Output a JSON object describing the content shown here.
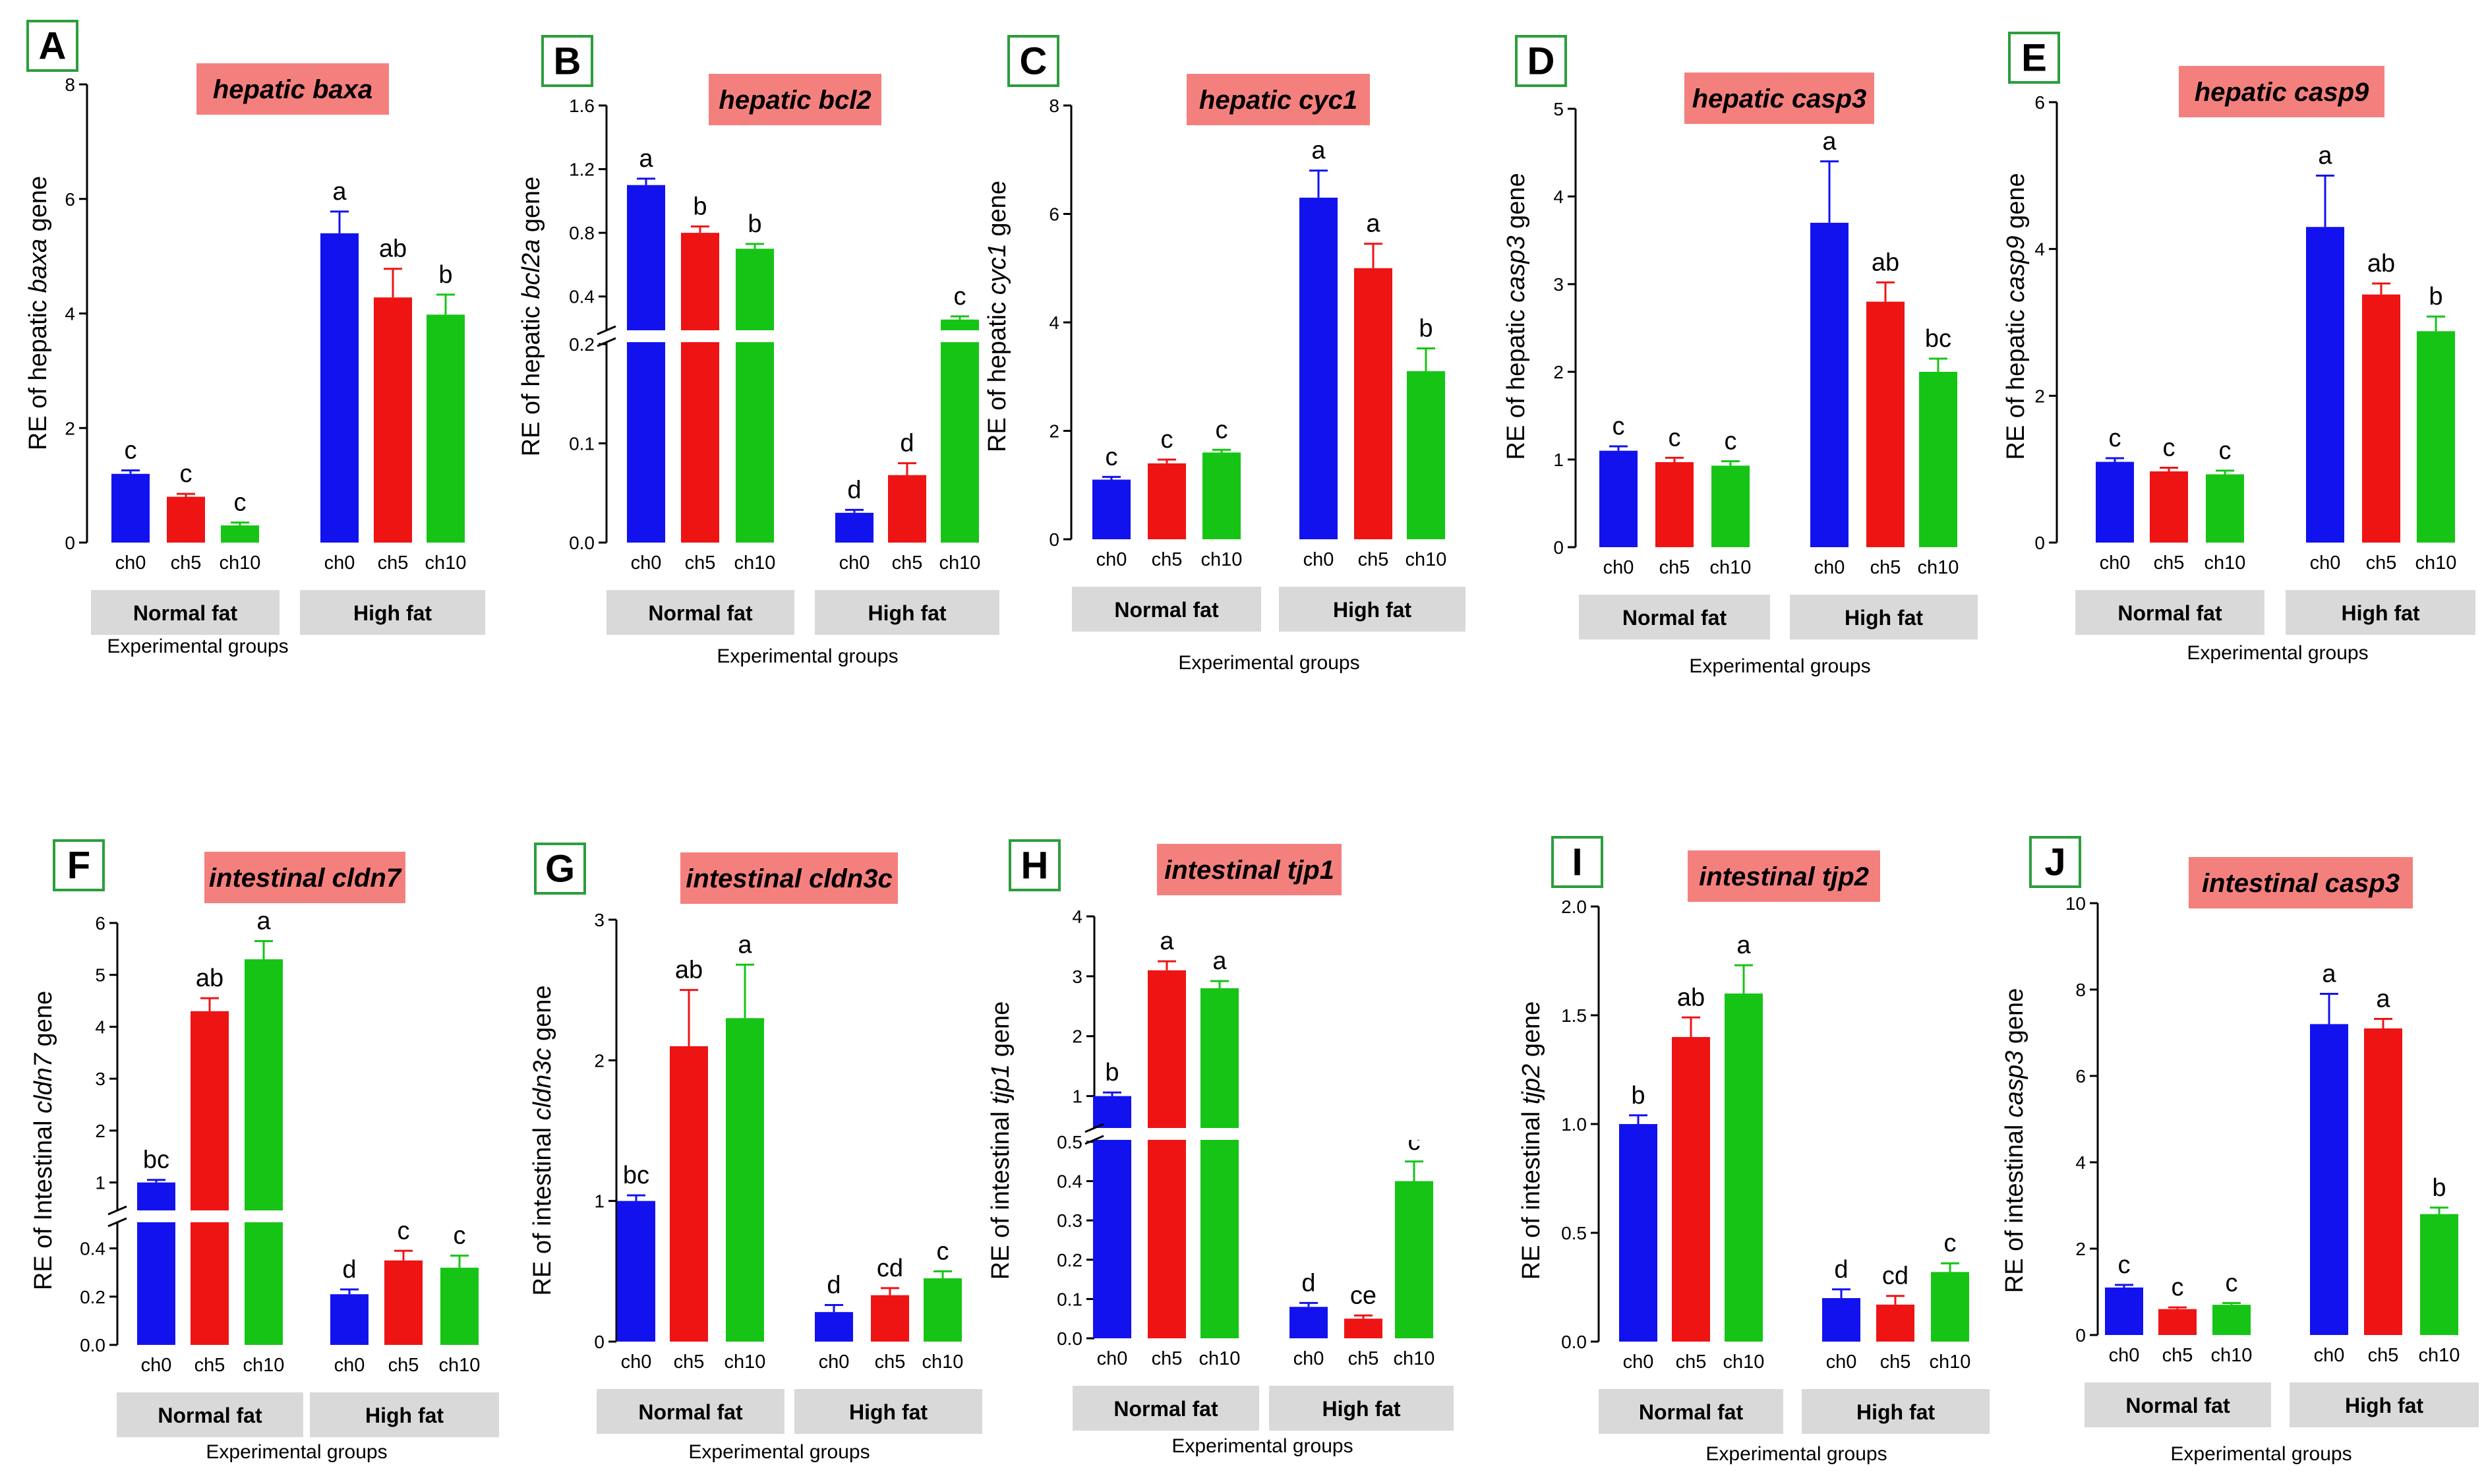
{
  "colors": {
    "ch0": "#1212ee",
    "ch5": "#ee1414",
    "ch10": "#16c416",
    "panel_border": "#2c9e3c",
    "title_bg": "#f4807e",
    "group_bg": "#d9d9d9",
    "axis": "#000000"
  },
  "chart_data": [
    {
      "letter": "A",
      "type": "bar",
      "title": "hepatic baxa",
      "ylabel_pre": "RE of hepatic ",
      "ylabel_it": "baxa",
      "ylabel_post": " gene",
      "xlabel": "Experimental groups",
      "yticks": [
        "0",
        "2",
        "4",
        "6",
        "8"
      ],
      "groups": [
        {
          "name": "Normal fat",
          "categories": [
            "ch0",
            "ch5",
            "ch10"
          ],
          "values": [
            1.2,
            0.8,
            0.3
          ],
          "errors": [
            0.06,
            0.05,
            0.05
          ],
          "letters": [
            "c",
            "c",
            "c"
          ]
        },
        {
          "name": "High fat",
          "categories": [
            "ch0",
            "ch5",
            "ch10"
          ],
          "values": [
            5.4,
            4.28,
            3.98
          ],
          "errors": [
            0.38,
            0.5,
            0.35
          ],
          "letters": [
            "a",
            "ab",
            "b"
          ]
        }
      ]
    },
    {
      "letter": "B",
      "type": "bar",
      "title": "hepatic bcl2",
      "ylabel_pre": "RE of hepatic ",
      "ylabel_it": "bcl2a",
      "ylabel_post": " gene",
      "xlabel": "Experimental groups",
      "yticks_lower": [
        "0.0",
        "0.1",
        "0.2"
      ],
      "yticks_upper": [
        "0.4",
        "0.8",
        "1.2",
        "1.6"
      ],
      "axis_break": true,
      "groups": [
        {
          "name": "Normal fat",
          "categories": [
            "ch0",
            "ch5",
            "ch10"
          ],
          "values": [
            1.1,
            0.8,
            0.7
          ],
          "errors": [
            0.04,
            0.04,
            0.03
          ],
          "letters": [
            "a",
            "b",
            "b"
          ]
        },
        {
          "name": "High fat",
          "categories": [
            "ch0",
            "ch5",
            "ch10"
          ],
          "values": [
            0.03,
            0.068,
            0.255
          ],
          "errors": [
            0.003,
            0.012,
            0.02
          ],
          "letters": [
            "d",
            "d",
            "c"
          ]
        }
      ]
    },
    {
      "letter": "C",
      "type": "bar",
      "title": "hepatic cyc1",
      "ylabel_pre": "RE of hepatic ",
      "ylabel_it": "cyc1",
      "ylabel_post": " gene",
      "xlabel": "Experimental groups",
      "yticks": [
        "0",
        "2",
        "4",
        "6",
        "8"
      ],
      "groups": [
        {
          "name": "Normal fat",
          "categories": [
            "ch0",
            "ch5",
            "ch10"
          ],
          "values": [
            1.1,
            1.4,
            1.6
          ],
          "errors": [
            0.05,
            0.07,
            0.05
          ],
          "letters": [
            "c",
            "c",
            "c"
          ]
        },
        {
          "name": "High fat",
          "categories": [
            "ch0",
            "ch5",
            "ch10"
          ],
          "values": [
            6.3,
            5.0,
            3.1
          ],
          "errors": [
            0.5,
            0.45,
            0.42
          ],
          "letters": [
            "a",
            "a",
            "b"
          ]
        }
      ]
    },
    {
      "letter": "D",
      "type": "bar",
      "title": "hepatic casp3",
      "ylabel_pre": "RE of hepatic ",
      "ylabel_it": "casp3",
      "ylabel_post": " gene",
      "xlabel": "Experimental groups",
      "yticks": [
        "0",
        "1",
        "2",
        "3",
        "4",
        "5"
      ],
      "groups": [
        {
          "name": "Normal fat",
          "categories": [
            "ch0",
            "ch5",
            "ch10"
          ],
          "values": [
            1.1,
            0.97,
            0.93
          ],
          "errors": [
            0.05,
            0.05,
            0.05
          ],
          "letters": [
            "c",
            "c",
            "c"
          ]
        },
        {
          "name": "High fat",
          "categories": [
            "ch0",
            "ch5",
            "ch10"
          ],
          "values": [
            3.7,
            2.8,
            2.0
          ],
          "errors": [
            0.7,
            0.22,
            0.15
          ],
          "letters": [
            "a",
            "ab",
            "bc"
          ]
        }
      ]
    },
    {
      "letter": "E",
      "type": "bar",
      "title": "hepatic casp9",
      "ylabel_pre": "RE of hepatic ",
      "ylabel_it": "casp9",
      "ylabel_post": " gene",
      "xlabel": "Experimental groups",
      "yticks": [
        "0",
        "2",
        "4",
        "6"
      ],
      "groups": [
        {
          "name": "Normal fat",
          "categories": [
            "ch0",
            "ch5",
            "ch10"
          ],
          "values": [
            1.1,
            0.97,
            0.93
          ],
          "errors": [
            0.05,
            0.05,
            0.05
          ],
          "letters": [
            "c",
            "c",
            "c"
          ]
        },
        {
          "name": "High fat",
          "categories": [
            "ch0",
            "ch5",
            "ch10"
          ],
          "values": [
            4.3,
            3.38,
            2.88
          ],
          "errors": [
            0.7,
            0.15,
            0.2
          ],
          "letters": [
            "a",
            "ab",
            "b"
          ]
        }
      ]
    },
    {
      "letter": "F",
      "type": "bar",
      "title": "intestinal cldn7",
      "ylabel_pre": "RE of Intestinal ",
      "ylabel_it": "cldn7",
      "ylabel_post": " gene",
      "xlabel": "Experimental groups",
      "yticks_lower": [
        "0.0",
        "0.2",
        "0.4"
      ],
      "yticks_upper": [
        "1",
        "2",
        "3",
        "4",
        "5",
        "6"
      ],
      "axis_break": true,
      "groups": [
        {
          "name": "Normal fat",
          "categories": [
            "ch0",
            "ch5",
            "ch10"
          ],
          "values": [
            1.0,
            4.3,
            5.3
          ],
          "errors": [
            0.05,
            0.25,
            0.35
          ],
          "letters": [
            "bc",
            "ab",
            "a"
          ]
        },
        {
          "name": "High fat",
          "categories": [
            "ch0",
            "ch5",
            "ch10"
          ],
          "values": [
            0.21,
            0.35,
            0.32
          ],
          "errors": [
            0.02,
            0.04,
            0.05
          ],
          "letters": [
            "d",
            "c",
            "c"
          ]
        }
      ]
    },
    {
      "letter": "G",
      "type": "bar",
      "title": "intestinal cldn3c",
      "ylabel_pre": "RE of intestinal ",
      "ylabel_it": "cldn3c",
      "ylabel_post": " gene",
      "xlabel": "Experimental groups",
      "yticks": [
        "0",
        "1",
        "2",
        "3"
      ],
      "groups": [
        {
          "name": "Normal fat",
          "categories": [
            "ch0",
            "ch5",
            "ch10"
          ],
          "values": [
            1.0,
            2.1,
            2.3
          ],
          "errors": [
            0.04,
            0.4,
            0.38
          ],
          "letters": [
            "bc",
            "ab",
            "a"
          ]
        },
        {
          "name": "High fat",
          "categories": [
            "ch0",
            "ch5",
            "ch10"
          ],
          "values": [
            0.21,
            0.33,
            0.45
          ],
          "errors": [
            0.05,
            0.05,
            0.05
          ],
          "letters": [
            "d",
            "cd",
            "c"
          ]
        }
      ]
    },
    {
      "letter": "H",
      "type": "bar",
      "title": "intestinal tjp1",
      "ylabel_pre": "RE of intestinal ",
      "ylabel_it": "tjp1",
      "ylabel_post": " gene",
      "xlabel": "Experimental groups",
      "yticks_lower": [
        "0.0",
        "0.1",
        "0.2",
        "0.3",
        "0.4",
        "0.5"
      ],
      "yticks_upper": [
        "1",
        "2",
        "3",
        "4"
      ],
      "axis_break": true,
      "groups": [
        {
          "name": "Normal fat",
          "categories": [
            "ch0",
            "ch5",
            "ch10"
          ],
          "values": [
            1.0,
            3.1,
            2.8
          ],
          "errors": [
            0.06,
            0.15,
            0.12
          ],
          "letters": [
            "b",
            "a",
            "a"
          ]
        },
        {
          "name": "High fat",
          "categories": [
            "ch0",
            "ch5",
            "ch10"
          ],
          "values": [
            0.08,
            0.05,
            0.4
          ],
          "errors": [
            0.01,
            0.008,
            0.05
          ],
          "letters": [
            "d",
            "ce",
            "c"
          ]
        }
      ]
    },
    {
      "letter": "I",
      "type": "bar",
      "title": "intestinal tjp2",
      "ylabel_pre": "RE of intestinal ",
      "ylabel_it": "tjp2",
      "ylabel_post": " gene",
      "xlabel": "Experimental groups",
      "yticks": [
        "0.0",
        "0.5",
        "1.0",
        "1.5",
        "2.0"
      ],
      "groups": [
        {
          "name": "Normal fat",
          "categories": [
            "ch0",
            "ch5",
            "ch10"
          ],
          "values": [
            1.0,
            1.4,
            1.6
          ],
          "errors": [
            0.04,
            0.09,
            0.13
          ],
          "letters": [
            "b",
            "ab",
            "a"
          ]
        },
        {
          "name": "High fat",
          "categories": [
            "ch0",
            "ch5",
            "ch10"
          ],
          "values": [
            0.2,
            0.17,
            0.32
          ],
          "errors": [
            0.04,
            0.04,
            0.04
          ],
          "letters": [
            "d",
            "cd",
            "c"
          ]
        }
      ]
    },
    {
      "letter": "J",
      "type": "bar",
      "title": "intestinal casp3",
      "ylabel_pre": "RE of intestinal ",
      "ylabel_it": "casp3",
      "ylabel_post": " gene",
      "xlabel": "Experimental groups",
      "yticks": [
        "0",
        "2",
        "4",
        "6",
        "8",
        "10"
      ],
      "groups": [
        {
          "name": "Normal fat",
          "categories": [
            "ch0",
            "ch5",
            "ch10"
          ],
          "values": [
            1.1,
            0.6,
            0.7
          ],
          "errors": [
            0.06,
            0.04,
            0.04
          ],
          "letters": [
            "c",
            "c",
            "c"
          ]
        },
        {
          "name": "High fat",
          "categories": [
            "ch0",
            "ch5",
            "ch10"
          ],
          "values": [
            7.2,
            7.1,
            2.8
          ],
          "errors": [
            0.7,
            0.22,
            0.15
          ],
          "letters": [
            "a",
            "a",
            "b"
          ]
        }
      ]
    }
  ]
}
